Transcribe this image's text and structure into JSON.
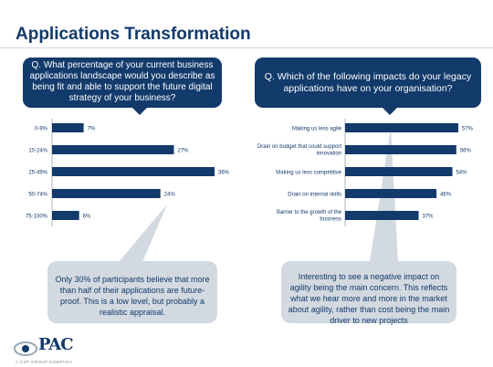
{
  "page": {
    "title": "Applications Transformation"
  },
  "left_question": "Q. What percentage of your current business applications landscape would you describe as being fit and able to support the future digital strategy of your business?",
  "right_question": "Q. Which of the following impacts do your legacy applications have on your organisation?",
  "left_callout": "Only 30% of participants believe that more than half of their applications are future-proof. This is a low level, but probably a realistic appraisal.",
  "right_callout": "Interesting to see a negative impact on agility being the main concern. This reflects what we hear more and more in the market about agility, rather than cost being the main driver to new projects",
  "logo": {
    "name": "PAC",
    "tagline": "A CXP GROUP COMPANY"
  },
  "colors": {
    "navy": "#123a6b",
    "callout_bg": "#d3d9e0"
  },
  "chart_data": [
    {
      "type": "bar",
      "orientation": "horizontal",
      "categories": [
        "0-9%",
        "10-24%",
        "25-49%",
        "50-74%",
        "75-100%"
      ],
      "values": [
        7,
        27,
        36,
        24,
        6
      ],
      "labels": [
        "7%",
        "27%",
        "36%",
        "24%",
        "6%"
      ],
      "xlim": [
        0,
        36
      ]
    },
    {
      "type": "bar",
      "orientation": "horizontal",
      "categories": [
        "Making us less agile",
        "Drain on budget that could support innovation",
        "Making us less competitive",
        "Drain on internal skills",
        "Barrier to the growth of the business"
      ],
      "values": [
        57,
        56,
        54,
        46,
        37
      ],
      "labels": [
        "57%",
        "56%",
        "54%",
        "46%",
        "37%"
      ],
      "xlim": [
        0,
        57
      ]
    }
  ]
}
